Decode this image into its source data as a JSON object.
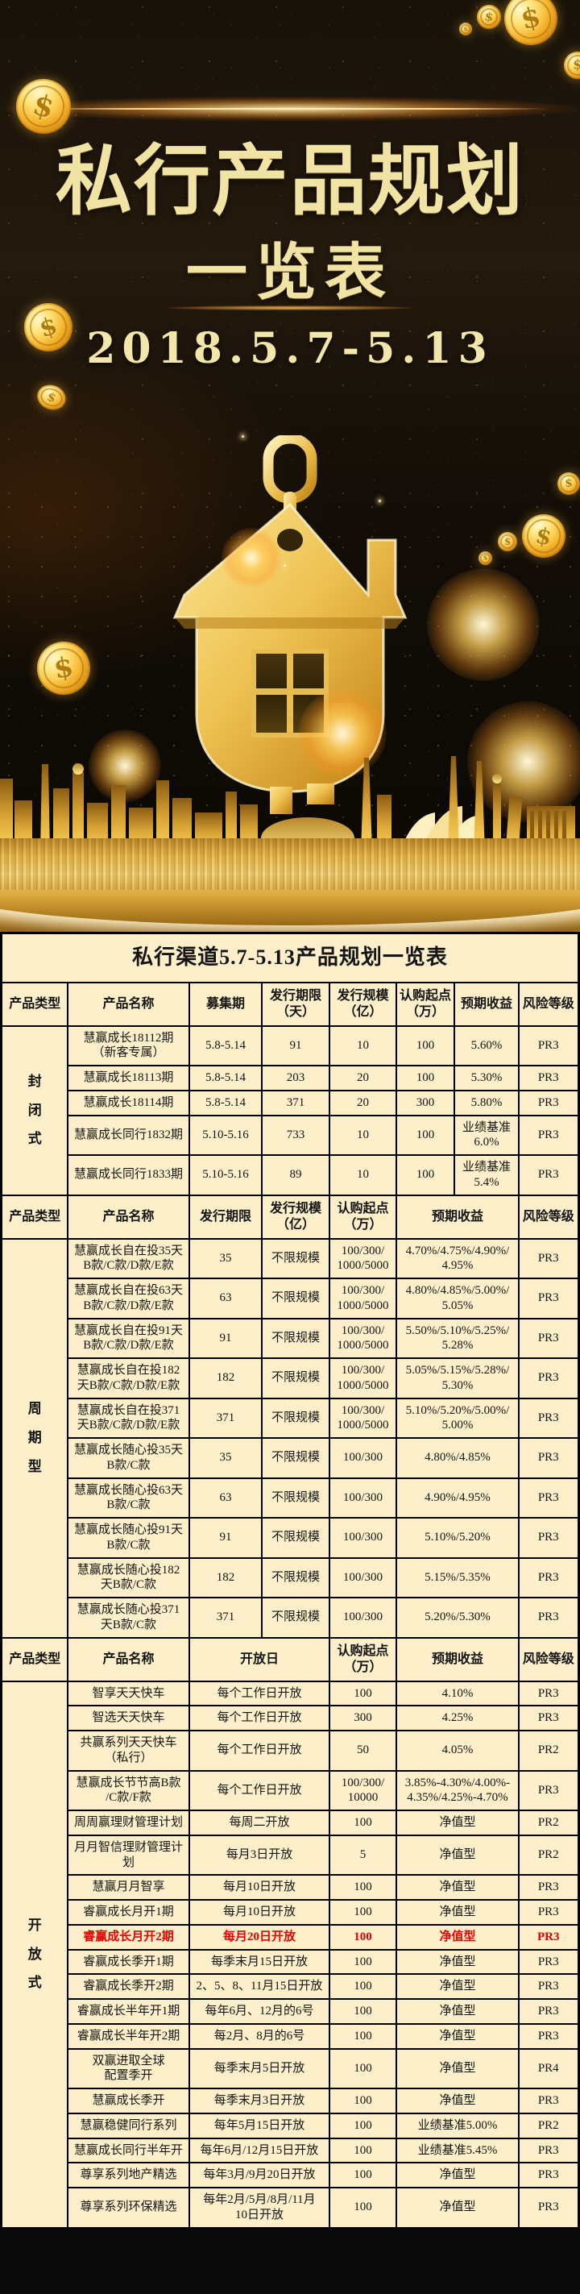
{
  "poster": {
    "title": "私行产品规划",
    "subtitle": "一览表",
    "date_range": "2018.5.7-5.13",
    "coin_symbol": "$",
    "colors": {
      "gold_text": "#f1e3a4",
      "background": "#120d07",
      "table_bg": "#fcefc9",
      "highlight_red": "#e60000"
    }
  },
  "table": {
    "title": "私行渠道5.7-5.13产品规划一览表",
    "sections": [
      {
        "type_label": "封闭式",
        "header": [
          {
            "t": "产品类型"
          },
          {
            "t": "产品名称"
          },
          {
            "t": "募集期"
          },
          {
            "t": "发行期限\n（天）"
          },
          {
            "t": "发行规模\n（亿）"
          },
          {
            "t": "认购起点\n（万）"
          },
          {
            "t": "预期收益"
          },
          {
            "t": "风险等级"
          }
        ],
        "rows": [
          {
            "cells": [
              {
                "t": "慧赢成长18112期\n（新客专属）"
              },
              {
                "t": "5.8-5.14"
              },
              {
                "t": "91"
              },
              {
                "t": "10"
              },
              {
                "t": "100"
              },
              {
                "t": "5.60%"
              },
              {
                "t": "PR3"
              }
            ]
          },
          {
            "cells": [
              {
                "t": "慧赢成长18113期"
              },
              {
                "t": "5.8-5.14"
              },
              {
                "t": "203"
              },
              {
                "t": "20"
              },
              {
                "t": "100"
              },
              {
                "t": "5.30%"
              },
              {
                "t": "PR3"
              }
            ]
          },
          {
            "cells": [
              {
                "t": "慧赢成长18114期"
              },
              {
                "t": "5.8-5.14"
              },
              {
                "t": "371"
              },
              {
                "t": "20"
              },
              {
                "t": "300"
              },
              {
                "t": "5.80%"
              },
              {
                "t": "PR3"
              }
            ]
          },
          {
            "cells": [
              {
                "t": "慧赢成长同行1832期"
              },
              {
                "t": "5.10-5.16"
              },
              {
                "t": "733"
              },
              {
                "t": "10"
              },
              {
                "t": "100"
              },
              {
                "t": "业绩基准\n6.0%"
              },
              {
                "t": "PR3"
              }
            ]
          },
          {
            "cells": [
              {
                "t": "慧赢成长同行1833期"
              },
              {
                "t": "5.10-5.16"
              },
              {
                "t": "89"
              },
              {
                "t": "10"
              },
              {
                "t": "100"
              },
              {
                "t": "业绩基准\n5.4%"
              },
              {
                "t": "PR3"
              }
            ]
          }
        ]
      },
      {
        "type_label": "周期型",
        "header": [
          {
            "t": "产品类型"
          },
          {
            "t": "产品名称"
          },
          {
            "t": "发行期限"
          },
          {
            "t": "发行规模\n（亿）"
          },
          {
            "t": "认购起点\n（万）"
          },
          {
            "t": "预期收益",
            "cs": 2
          },
          {
            "t": "风险等级"
          }
        ],
        "rows": [
          {
            "cells": [
              {
                "t": "慧赢成长自在投35天\nB款/C款/D款/E款"
              },
              {
                "t": "35"
              },
              {
                "t": "不限规模"
              },
              {
                "t": "100/300/\n1000/5000"
              },
              {
                "t": "4.70%/4.75%/4.90%/\n4.95%",
                "cs": 2
              },
              {
                "t": "PR3"
              }
            ]
          },
          {
            "cells": [
              {
                "t": "慧赢成长自在投63天\nB款/C款/D款/E款"
              },
              {
                "t": "63"
              },
              {
                "t": "不限规模"
              },
              {
                "t": "100/300/\n1000/5000"
              },
              {
                "t": "4.80%/4.85%/5.00%/\n5.05%",
                "cs": 2
              },
              {
                "t": "PR3"
              }
            ]
          },
          {
            "cells": [
              {
                "t": "慧赢成长自在投91天\nB款/C款/D款/E款"
              },
              {
                "t": "91"
              },
              {
                "t": "不限规模"
              },
              {
                "t": "100/300/\n1000/5000"
              },
              {
                "t": "5.50%/5.10%/5.25%/\n5.28%",
                "cs": 2
              },
              {
                "t": "PR3"
              }
            ]
          },
          {
            "cells": [
              {
                "t": "慧赢成长自在投182\n天B款/C款/D款/E款"
              },
              {
                "t": "182"
              },
              {
                "t": "不限规模"
              },
              {
                "t": "100/300/\n1000/5000"
              },
              {
                "t": "5.05%/5.15%/5.28%/\n5.30%",
                "cs": 2
              },
              {
                "t": "PR3"
              }
            ]
          },
          {
            "cells": [
              {
                "t": "慧赢成长自在投371\n天B款/C款/D款/E款"
              },
              {
                "t": "371"
              },
              {
                "t": "不限规模"
              },
              {
                "t": "100/300/\n1000/5000"
              },
              {
                "t": "5.10%/5.20%/5.00%/\n5.00%",
                "cs": 2
              },
              {
                "t": "PR3"
              }
            ]
          },
          {
            "cells": [
              {
                "t": "慧赢成长随心投35天\nB款/C款"
              },
              {
                "t": "35"
              },
              {
                "t": "不限规模"
              },
              {
                "t": "100/300"
              },
              {
                "t": "4.80%/4.85%",
                "cs": 2
              },
              {
                "t": "PR3"
              }
            ]
          },
          {
            "cells": [
              {
                "t": "慧赢成长随心投63天\nB款/C款"
              },
              {
                "t": "63"
              },
              {
                "t": "不限规模"
              },
              {
                "t": "100/300"
              },
              {
                "t": "4.90%/4.95%",
                "cs": 2
              },
              {
                "t": "PR3"
              }
            ]
          },
          {
            "cells": [
              {
                "t": "慧赢成长随心投91天\nB款/C款"
              },
              {
                "t": "91"
              },
              {
                "t": "不限规模"
              },
              {
                "t": "100/300"
              },
              {
                "t": "5.10%/5.20%",
                "cs": 2
              },
              {
                "t": "PR3"
              }
            ]
          },
          {
            "cells": [
              {
                "t": "慧赢成长随心投182\n天B款/C款"
              },
              {
                "t": "182"
              },
              {
                "t": "不限规模"
              },
              {
                "t": "100/300"
              },
              {
                "t": "5.15%/5.35%",
                "cs": 2
              },
              {
                "t": "PR3"
              }
            ]
          },
          {
            "cells": [
              {
                "t": "慧赢成长随心投371\n天B款/C款"
              },
              {
                "t": "371"
              },
              {
                "t": "不限规模"
              },
              {
                "t": "100/300"
              },
              {
                "t": "5.20%/5.30%",
                "cs": 2
              },
              {
                "t": "PR3"
              }
            ]
          }
        ]
      },
      {
        "type_label": "开放式",
        "header": [
          {
            "t": "产品类型"
          },
          {
            "t": "产品名称"
          },
          {
            "t": "开放日",
            "cs": 2
          },
          {
            "t": "认购起点\n（万）"
          },
          {
            "t": "预期收益",
            "cs": 2
          },
          {
            "t": "风险等级"
          }
        ],
        "rows": [
          {
            "cells": [
              {
                "t": "智享天天快车"
              },
              {
                "t": "每个工作日开放",
                "cs": 2
              },
              {
                "t": "100"
              },
              {
                "t": "4.10%",
                "cs": 2
              },
              {
                "t": "PR3"
              }
            ]
          },
          {
            "cells": [
              {
                "t": "智选天天快车"
              },
              {
                "t": "每个工作日开放",
                "cs": 2
              },
              {
                "t": "300"
              },
              {
                "t": "4.25%",
                "cs": 2
              },
              {
                "t": "PR3"
              }
            ]
          },
          {
            "cells": [
              {
                "t": "共赢系列天天快车\n（私行）"
              },
              {
                "t": "每个工作日开放",
                "cs": 2
              },
              {
                "t": "50"
              },
              {
                "t": "4.05%",
                "cs": 2
              },
              {
                "t": "PR2"
              }
            ]
          },
          {
            "cells": [
              {
                "t": "慧赢成长节节高B款\n/C款/F款"
              },
              {
                "t": "每个工作日开放",
                "cs": 2
              },
              {
                "t": "100/300/\n10000"
              },
              {
                "t": "3.85%-4.30%/4.00%-\n4.35%/4.25%-4.70%",
                "cs": 2
              },
              {
                "t": "PR3"
              }
            ]
          },
          {
            "cells": [
              {
                "t": "周周赢理财管理计划"
              },
              {
                "t": "每周二开放",
                "cs": 2
              },
              {
                "t": "100"
              },
              {
                "t": "净值型",
                "cs": 2
              },
              {
                "t": "PR2"
              }
            ]
          },
          {
            "cells": [
              {
                "t": "月月智信理财管理计\n划"
              },
              {
                "t": "每月3日开放",
                "cs": 2
              },
              {
                "t": "5"
              },
              {
                "t": "净值型",
                "cs": 2
              },
              {
                "t": "PR2"
              }
            ]
          },
          {
            "cells": [
              {
                "t": "慧赢月月智享"
              },
              {
                "t": "每月10日开放",
                "cs": 2
              },
              {
                "t": "100"
              },
              {
                "t": "净值型",
                "cs": 2
              },
              {
                "t": "PR3"
              }
            ]
          },
          {
            "cells": [
              {
                "t": "睿赢成长月开1期"
              },
              {
                "t": "每月10日开放",
                "cs": 2
              },
              {
                "t": "100"
              },
              {
                "t": "净值型",
                "cs": 2
              },
              {
                "t": "PR3"
              }
            ]
          },
          {
            "red": true,
            "cells": [
              {
                "t": "睿赢成长月开2期"
              },
              {
                "t": "每月20日开放",
                "cs": 2
              },
              {
                "t": "100"
              },
              {
                "t": "净值型",
                "cs": 2
              },
              {
                "t": "PR3"
              }
            ]
          },
          {
            "cells": [
              {
                "t": "睿赢成长季开1期"
              },
              {
                "t": "每季末月15日开放",
                "cs": 2
              },
              {
                "t": "100"
              },
              {
                "t": "净值型",
                "cs": 2
              },
              {
                "t": "PR3"
              }
            ]
          },
          {
            "cells": [
              {
                "t": "睿赢成长季开2期"
              },
              {
                "t": "2、5、8、11月15日开放",
                "cs": 2
              },
              {
                "t": "100"
              },
              {
                "t": "净值型",
                "cs": 2
              },
              {
                "t": "PR3"
              }
            ]
          },
          {
            "cells": [
              {
                "t": "睿赢成长半年开1期"
              },
              {
                "t": "每年6月、12月的6号",
                "cs": 2
              },
              {
                "t": "100"
              },
              {
                "t": "净值型",
                "cs": 2
              },
              {
                "t": "PR3"
              }
            ]
          },
          {
            "cells": [
              {
                "t": "睿赢成长半年开2期"
              },
              {
                "t": "每2月、8月的6号",
                "cs": 2
              },
              {
                "t": "100"
              },
              {
                "t": "净值型",
                "cs": 2
              },
              {
                "t": "PR3"
              }
            ]
          },
          {
            "cells": [
              {
                "t": "双赢进取全球\n配置季开"
              },
              {
                "t": "每季末月5日开放",
                "cs": 2
              },
              {
                "t": "100"
              },
              {
                "t": "净值型",
                "cs": 2
              },
              {
                "t": "PR4"
              }
            ]
          },
          {
            "cells": [
              {
                "t": "慧赢成长季开"
              },
              {
                "t": "每季末月3日开放",
                "cs": 2
              },
              {
                "t": "100"
              },
              {
                "t": "净值型",
                "cs": 2
              },
              {
                "t": "PR3"
              }
            ]
          },
          {
            "cells": [
              {
                "t": "慧赢稳健同行系列"
              },
              {
                "t": "每年5月15日开放",
                "cs": 2
              },
              {
                "t": "100"
              },
              {
                "t": "业绩基准5.00%",
                "cs": 2
              },
              {
                "t": "PR2"
              }
            ]
          },
          {
            "cells": [
              {
                "t": "慧赢成长同行半年开"
              },
              {
                "t": "每年6月/12月15日开放",
                "cs": 2
              },
              {
                "t": "100"
              },
              {
                "t": "业绩基准5.45%",
                "cs": 2
              },
              {
                "t": "PR3"
              }
            ]
          },
          {
            "cells": [
              {
                "t": "尊享系列地产精选"
              },
              {
                "t": "每年3月/9月20日开放",
                "cs": 2
              },
              {
                "t": "100"
              },
              {
                "t": "净值型",
                "cs": 2
              },
              {
                "t": "PR3"
              }
            ]
          },
          {
            "cells": [
              {
                "t": "尊享系列环保精选"
              },
              {
                "t": "每年2月/5月/8月/11月\n10日开放",
                "cs": 2
              },
              {
                "t": "100"
              },
              {
                "t": "净值型",
                "cs": 2
              },
              {
                "t": "PR3"
              }
            ]
          }
        ]
      }
    ]
  }
}
